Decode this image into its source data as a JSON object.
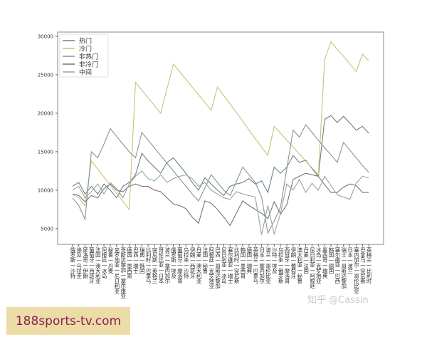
{
  "chart_data": {
    "type": "line",
    "title": "",
    "xlabel": "",
    "ylabel": "",
    "ylim": [
      2950,
      30550
    ],
    "yticks": [
      5000,
      10000,
      15000,
      20000,
      25000,
      30000
    ],
    "grid": false,
    "legend_position": "top-left",
    "categories": [
      "俄罗斯—沙特",
      "埃及—乌拉圭",
      "摩洛哥—伊朗",
      "葡萄牙—西班牙",
      "法国—澳大利亚",
      "阿根廷—冰岛",
      "秘鲁—丹麦",
      "克罗地亚—尼日利亚",
      "哥斯达黎加—塞尔维亚",
      "德国—墨西哥",
      "巴西—瑞士",
      "瑞典—韩国",
      "比利时—巴拿马",
      "突尼斯—英格兰",
      "哥伦比亚—日本",
      "波兰—塞内加尔",
      "俄罗斯—埃及",
      "葡萄牙—摩洛哥",
      "乌拉圭—沙特",
      "伊朗—西班牙",
      "丹麦—澳大利亚",
      "法国—秘鲁",
      "阿根廷—克罗地亚",
      "巴西—哥斯达黎加",
      "尼日利亚—冰岛",
      "塞尔维亚—瑞士",
      "比利时—突尼斯",
      "韩国—墨西哥",
      "德国—瑞典",
      "英格兰—巴拿马",
      "日本—塞内加尔",
      "波兰—哥伦比亚",
      "沙特—埃及",
      "乌拉圭—俄罗斯",
      "西班牙—摩洛哥",
      "伊朗—葡萄牙",
      "澳大利亚—秘鲁",
      "丹麦—法国",
      "尼日利亚—阿根廷",
      "冰岛—克罗地亚",
      "墨西哥—瑞典",
      "韩国—德国",
      "塞尔维亚—巴西",
      "瑞士—哥斯达黎加",
      "日本—波兰",
      "塞内加尔—哥伦比亚",
      "巴拿马—突尼斯",
      "英格兰—比利时"
    ],
    "series": [
      {
        "name": "热门",
        "color": "#6a7f8f",
        "values": [
          10500,
          11000,
          9500,
          10500,
          9500,
          10800,
          10000,
          9000,
          10500,
          11000,
          12000,
          14800,
          13800,
          13000,
          12200,
          13600,
          14200,
          13200,
          12200,
          11000,
          10000,
          11600,
          10800,
          10000,
          9300,
          10500,
          10800,
          11000,
          11500,
          10800,
          11200,
          9700,
          13000,
          12200,
          13000,
          14500,
          13600,
          13900,
          12800,
          11800,
          19200,
          19700,
          18800,
          19600,
          18700,
          17800,
          18300,
          17400
        ]
      },
      {
        "name": "冷门",
        "color": "#c9c27a",
        "values": [
          9500,
          9000,
          8000,
          13800,
          12750,
          11700,
          10650,
          9600,
          8550,
          7500,
          24000,
          23000,
          22000,
          21000,
          20000,
          23200,
          26400,
          25400,
          24400,
          23400,
          22400,
          21400,
          20400,
          23400,
          22300,
          21200,
          20100,
          19000,
          17800,
          16700,
          15600,
          14500,
          18300,
          17400,
          16500,
          15600,
          14700,
          13800,
          12900,
          12000,
          27000,
          29300,
          28300,
          27400,
          26400,
          25400,
          27700,
          26800
        ]
      },
      {
        "name": "非热门",
        "color": "#8a9590",
        "values": [
          9000,
          8000,
          6200,
          15000,
          14200,
          16000,
          18000,
          17000,
          16000,
          15000,
          14200,
          17500,
          16500,
          15500,
          14500,
          13500,
          12500,
          11500,
          10500,
          9500,
          8600,
          10300,
          12000,
          11000,
          10000,
          9300,
          11100,
          13000,
          12000,
          11000,
          9100,
          4400,
          6000,
          7800,
          12800,
          17800,
          16900,
          18500,
          17500,
          16500,
          15500,
          14600,
          13600,
          16200,
          15200,
          14200,
          13200,
          12300
        ]
      },
      {
        "name": "非冷门",
        "color": "#7f6f80",
        "values": [
          9500,
          9300,
          8500,
          9300,
          9000,
          10200,
          10800,
          10000,
          9800,
          10500,
          10800,
          10500,
          10500,
          10000,
          9800,
          9000,
          8200,
          8000,
          7600,
          6500,
          5700,
          8600,
          8300,
          7500,
          6500,
          5400,
          7000,
          8600,
          8000,
          7500,
          7000,
          6300,
          8500,
          6900,
          8100,
          11400,
          11800,
          12200,
          12000,
          11800,
          10700,
          9700,
          9700,
          10400,
          10800,
          10600,
          9700,
          9700
        ]
      },
      {
        "name": "中间",
        "color": "#93a89b",
        "values": [
          10000,
          10500,
          9000,
          9800,
          10800,
          9500,
          11000,
          10200,
          9000,
          10800,
          11800,
          12500,
          11500,
          11200,
          12000,
          11000,
          11500,
          11800,
          12000,
          11500,
          10500,
          11000,
          10000,
          9500,
          9000,
          8800,
          9800,
          9500,
          9300,
          9100,
          4200,
          8000,
          4300,
          7000,
          10800,
          10000,
          11400,
          9700,
          10900,
          10000,
          11800,
          10600,
          9400,
          9100,
          8800,
          10900,
          11800,
          11600
        ]
      }
    ]
  },
  "banner": {
    "text": "188sports-tv.com"
  },
  "watermark": {
    "text": "知乎 @Cassin"
  }
}
